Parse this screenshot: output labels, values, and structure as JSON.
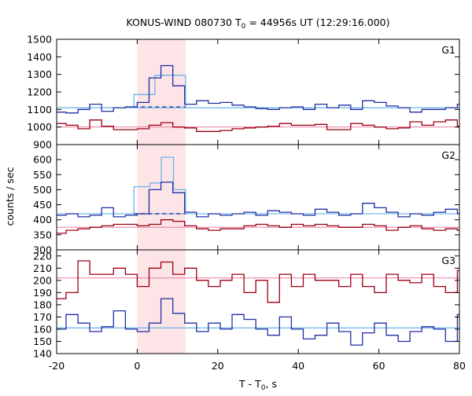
{
  "chart_data": {
    "type": "line",
    "title_prefix": "KONUS-WIND 080730 T",
    "title_sub": "0",
    "title_suffix": " = 44956s UT (12:29:16.000)",
    "xlabel_prefix": "T - T",
    "xlabel_sub": "0",
    "xlabel_suffix": ", s",
    "ylabel": "counts / sec",
    "xlim": [
      -20,
      80
    ],
    "xticks": [
      "-20",
      "0",
      "20",
      "40",
      "60",
      "80"
    ],
    "bin_width": 2.944,
    "x_start": -20.6,
    "highlight": {
      "x0": 0,
      "x1": 12,
      "color": "#fde4e6"
    },
    "colors": {
      "blue": "#1f2fa3",
      "red": "#990010",
      "cyan": "#6ab4e8",
      "pink": "#e97aa1"
    },
    "panels": [
      {
        "label": "G1",
        "ylim": [
          900,
          1500
        ],
        "yticks": [
          "900",
          "1000",
          "1100",
          "1200",
          "1300",
          "1400",
          "1500"
        ],
        "blue": [
          1085,
          1080,
          1100,
          1130,
          1090,
          1110,
          1115,
          1140,
          1280,
          1350,
          1235,
          1130,
          1150,
          1135,
          1140,
          1125,
          1115,
          1105,
          1100,
          1110,
          1115,
          1100,
          1130,
          1110,
          1125,
          1100,
          1150,
          1140,
          1120,
          1110,
          1085,
          1100,
          1100,
          1110,
          1130,
          1105,
          1135,
          1125,
          1130,
          1110,
          1085,
          1100,
          1120
        ],
        "blue_bg": 1110,
        "red": [
          1020,
          1010,
          990,
          1040,
          1005,
          985,
          985,
          990,
          1010,
          1025,
          1000,
          995,
          975,
          975,
          980,
          990,
          995,
          1000,
          1005,
          1020,
          1010,
          1010,
          1015,
          985,
          985,
          1020,
          1010,
          1000,
          990,
          995,
          1030,
          1010,
          1030,
          1040,
          1005,
          995,
          1000,
          985,
          1015,
          1000,
          980,
          995
        ],
        "red_bg": 1000,
        "cyan_bins": [
          [
            -0.8,
            4.4,
            1185
          ],
          [
            4.4,
            12,
            1295
          ]
        ],
        "cyan_dash": 1115
      },
      {
        "label": "G2",
        "ylim": [
          300,
          650
        ],
        "yticks": [
          "300",
          "350",
          "400",
          "450",
          "500",
          "550",
          "600"
        ],
        "blue": [
          415,
          420,
          410,
          415,
          440,
          410,
          415,
          420,
          500,
          525,
          490,
          425,
          410,
          420,
          415,
          420,
          425,
          415,
          430,
          425,
          420,
          415,
          435,
          425,
          415,
          420,
          455,
          440,
          425,
          410,
          420,
          415,
          425,
          435,
          420,
          430,
          410,
          415,
          420,
          425,
          420
        ],
        "blue_bg": 420,
        "red": [
          355,
          365,
          370,
          375,
          380,
          385,
          385,
          380,
          385,
          400,
          395,
          380,
          370,
          365,
          370,
          370,
          380,
          385,
          380,
          375,
          385,
          380,
          385,
          380,
          375,
          375,
          385,
          380,
          365,
          375,
          380,
          370,
          365,
          370,
          365,
          375,
          370,
          370,
          375,
          365
        ],
        "red_bg": 375,
        "cyan_bins": [
          [
            -0.8,
            3.2,
            510
          ],
          [
            3.2,
            6.0,
            522
          ],
          [
            6.0,
            9.0,
            608
          ],
          [
            9.0,
            12.0,
            500
          ]
        ],
        "cyan_dash": 420
      },
      {
        "label": "G3",
        "ylim": [
          140,
          225
        ],
        "yticks": [
          "140",
          "150",
          "160",
          "170",
          "180",
          "190",
          "200",
          "210",
          "220"
        ],
        "blue": [
          160,
          172,
          165,
          158,
          162,
          175,
          160,
          158,
          165,
          185,
          173,
          165,
          158,
          165,
          160,
          172,
          168,
          160,
          155,
          170,
          160,
          152,
          155,
          165,
          158,
          147,
          157,
          165,
          155,
          150,
          158,
          162,
          160,
          150,
          172,
          160,
          155,
          160,
          155
        ],
        "blue_bg": 161,
        "red": [
          185,
          190,
          216,
          205,
          205,
          210,
          205,
          195,
          210,
          215,
          205,
          210,
          200,
          195,
          200,
          205,
          190,
          200,
          182,
          205,
          195,
          205,
          200,
          200,
          195,
          205,
          195,
          190,
          205,
          200,
          198,
          205,
          195,
          190,
          208,
          195,
          200,
          205,
          200
        ],
        "red_bg": 202,
        "cyan_bins": [],
        "cyan_dash": null
      }
    ]
  }
}
